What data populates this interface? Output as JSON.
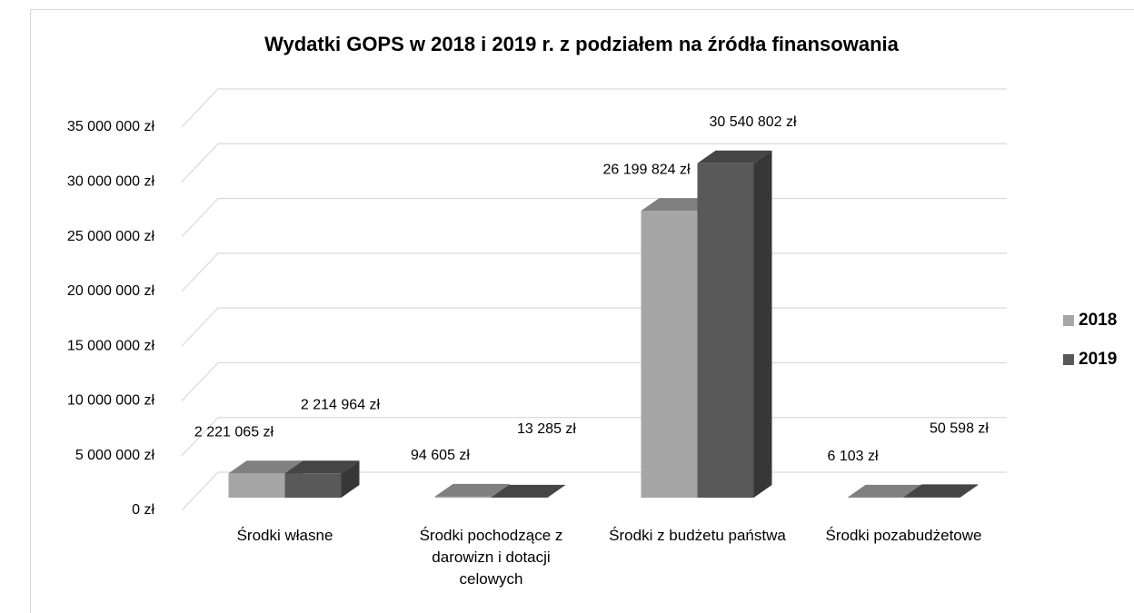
{
  "chart_data": {
    "type": "bar3d",
    "title": "Wydatki GOPS w 2018 i 2019 r. z podziałem na źródła finansowania",
    "categories": [
      "Środki własne",
      "Środki pochodzące z darowizn i dotacji celowych",
      "Środki z budżetu państwa",
      "Środki pozabudżetowe"
    ],
    "series": [
      {
        "name": "2018",
        "color": "#a6a6a6",
        "values": [
          2221065,
          94605,
          26199824,
          6103
        ],
        "value_labels": [
          "2 221 065 zł",
          "94 605 zł",
          "26 199 824 zł",
          "6 103 zł"
        ]
      },
      {
        "name": "2019",
        "color": "#595959",
        "values": [
          2214964,
          13285,
          30540802,
          50598
        ],
        "value_labels": [
          "2 214 964 zł",
          "13 285 zł",
          "30 540 802 zł",
          "50 598 zł"
        ]
      }
    ],
    "ylim": [
      0,
      35000000
    ],
    "yticks": [
      {
        "value": 0,
        "label": "0 zł"
      },
      {
        "value": 5000000,
        "label": "5 000 000 zł"
      },
      {
        "value": 10000000,
        "label": "10 000 000 zł"
      },
      {
        "value": 15000000,
        "label": "15 000 000 zł"
      },
      {
        "value": 20000000,
        "label": "20 000 000 zł"
      },
      {
        "value": 25000000,
        "label": "25 000 000 zł"
      },
      {
        "value": 30000000,
        "label": "30 000 000 zł"
      },
      {
        "value": 35000000,
        "label": "35 000 000 zł"
      }
    ],
    "grid": true,
    "legend": "right"
  }
}
